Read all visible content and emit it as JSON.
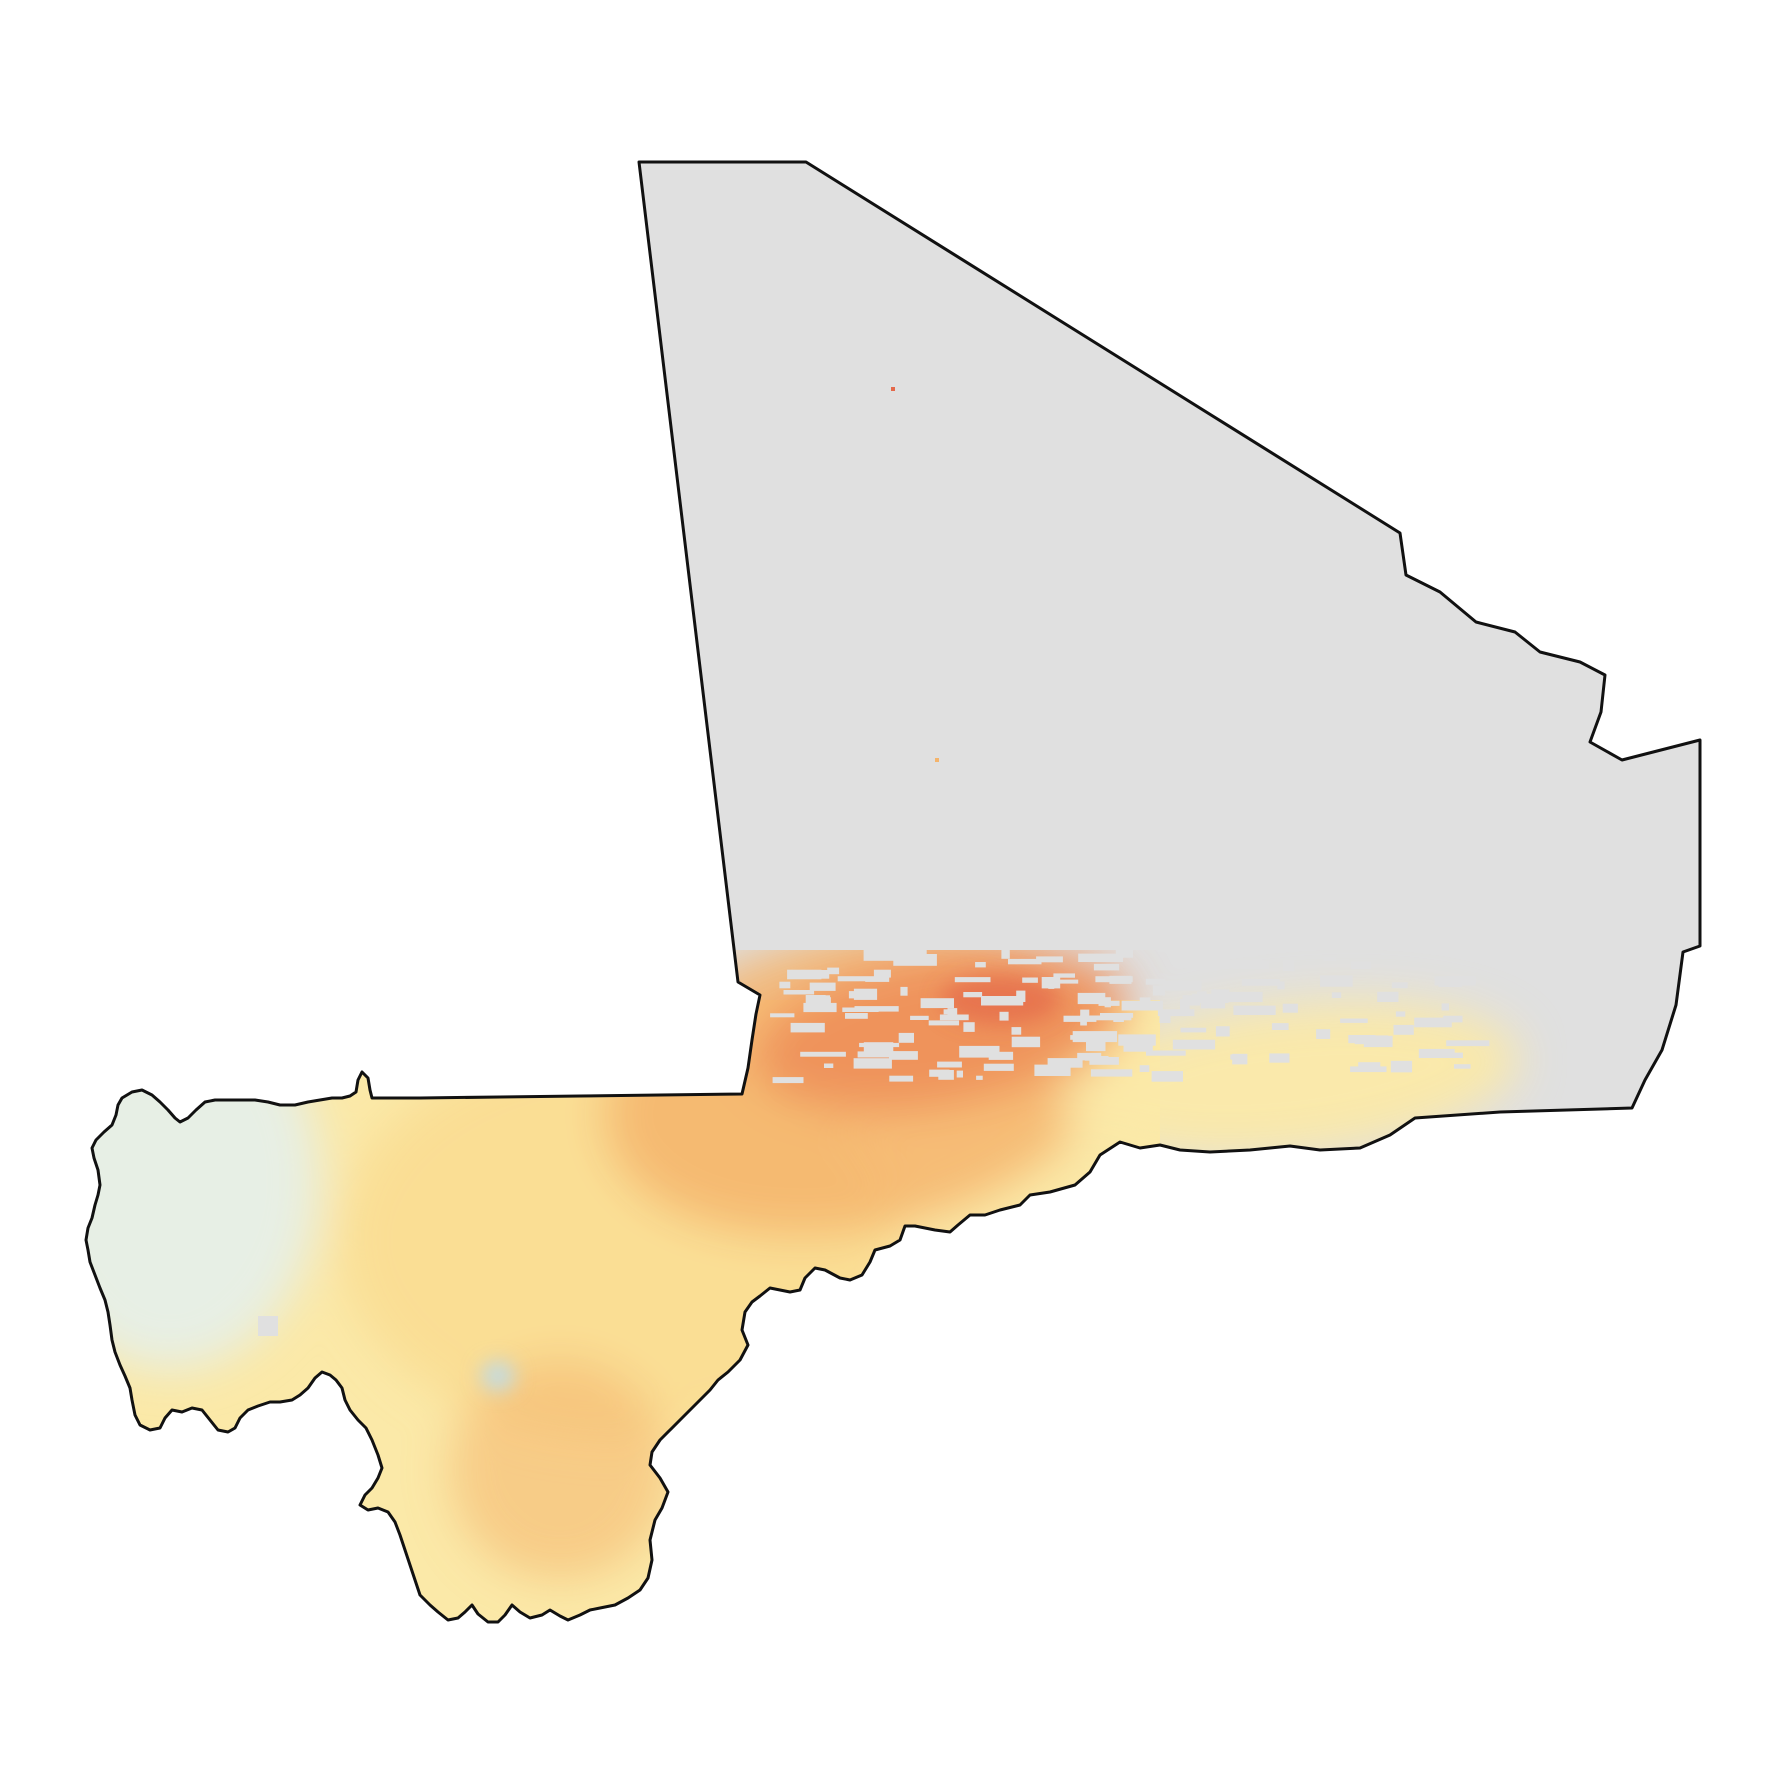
{
  "map": {
    "subject": "Mali",
    "no_data_color": "#e0e0e0",
    "border_color": "#111111",
    "palette": {
      "cold": "#bcdcec",
      "cool": "#e6efe8",
      "light": "#fbe9a8",
      "mid": "#f9d88c",
      "warm": "#f4b46c",
      "hot": "#ee8f5a",
      "hottest": "#e4684a"
    },
    "legend_shown": false,
    "title_shown": false
  }
}
